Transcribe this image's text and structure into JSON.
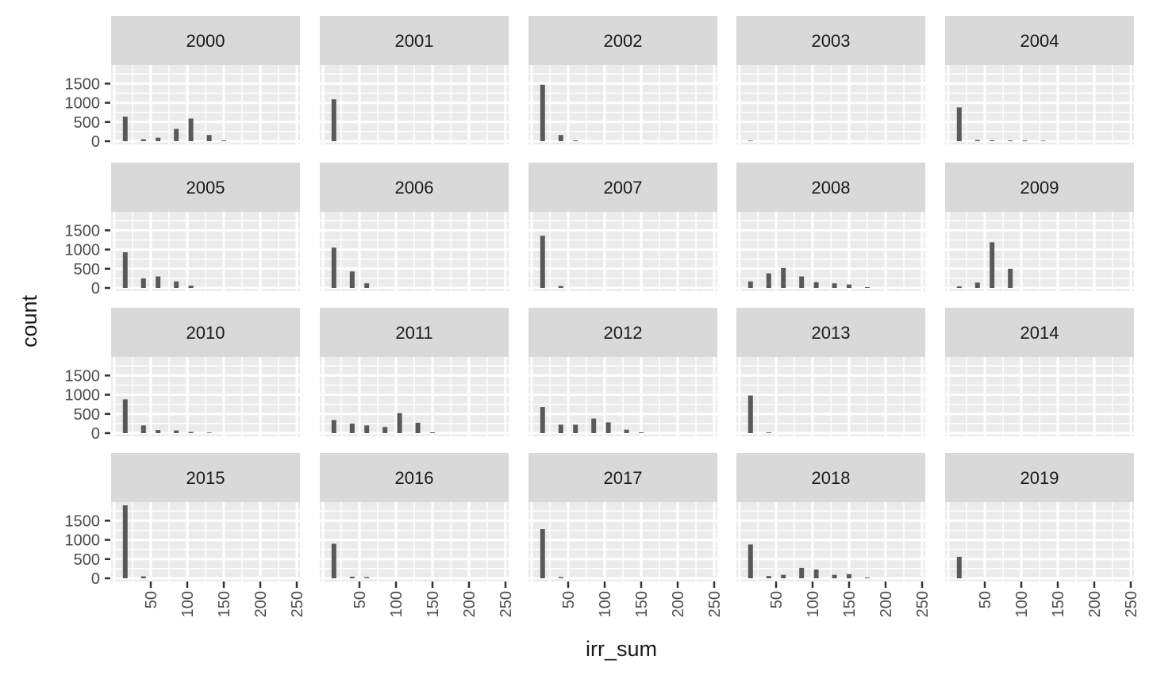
{
  "chart_data": {
    "type": "bar",
    "kind": "faceted-histogram",
    "xlabel": "irr_sum",
    "ylabel": "count",
    "xlim": [
      0,
      250
    ],
    "ylim": [
      0,
      1700
    ],
    "x_ticks": [
      50,
      100,
      150,
      200,
      250
    ],
    "y_ticks": [
      0,
      500,
      1000,
      1500
    ],
    "grid": true,
    "colors": {
      "panel": "#EBEBEB",
      "strip": "#D9D9D9",
      "bar": "#595959",
      "grid": "#FFFFFF",
      "text": "#4D4D4D",
      "title": "#1A1A1A"
    },
    "facet_layout": {
      "rows": 4,
      "cols": 5
    },
    "panels": [
      {
        "label": "2000",
        "bars": [
          {
            "x": 15,
            "y": 640
          },
          {
            "x": 40,
            "y": 50
          },
          {
            "x": 60,
            "y": 90
          },
          {
            "x": 85,
            "y": 320
          },
          {
            "x": 105,
            "y": 590
          },
          {
            "x": 130,
            "y": 160
          },
          {
            "x": 150,
            "y": 20
          }
        ]
      },
      {
        "label": "2001",
        "bars": [
          {
            "x": 15,
            "y": 1090
          }
        ]
      },
      {
        "label": "2002",
        "bars": [
          {
            "x": 15,
            "y": 1470
          },
          {
            "x": 40,
            "y": 160
          },
          {
            "x": 60,
            "y": 20
          }
        ]
      },
      {
        "label": "2003",
        "bars": [
          {
            "x": 15,
            "y": 15
          }
        ]
      },
      {
        "label": "2004",
        "bars": [
          {
            "x": 15,
            "y": 880
          },
          {
            "x": 40,
            "y": 30
          },
          {
            "x": 60,
            "y": 25
          },
          {
            "x": 85,
            "y": 20
          },
          {
            "x": 105,
            "y": 20
          },
          {
            "x": 130,
            "y": 15
          }
        ]
      },
      {
        "label": "2005",
        "bars": [
          {
            "x": 15,
            "y": 930
          },
          {
            "x": 40,
            "y": 250
          },
          {
            "x": 60,
            "y": 300
          },
          {
            "x": 85,
            "y": 170
          },
          {
            "x": 105,
            "y": 60
          }
        ]
      },
      {
        "label": "2006",
        "bars": [
          {
            "x": 15,
            "y": 1050
          },
          {
            "x": 40,
            "y": 430
          },
          {
            "x": 60,
            "y": 120
          }
        ]
      },
      {
        "label": "2007",
        "bars": [
          {
            "x": 15,
            "y": 1360
          },
          {
            "x": 40,
            "y": 50
          }
        ]
      },
      {
        "label": "2008",
        "bars": [
          {
            "x": 15,
            "y": 170
          },
          {
            "x": 40,
            "y": 380
          },
          {
            "x": 60,
            "y": 520
          },
          {
            "x": 85,
            "y": 300
          },
          {
            "x": 105,
            "y": 150
          },
          {
            "x": 130,
            "y": 120
          },
          {
            "x": 150,
            "y": 90
          },
          {
            "x": 175,
            "y": 20
          }
        ]
      },
      {
        "label": "2009",
        "bars": [
          {
            "x": 15,
            "y": 40
          },
          {
            "x": 40,
            "y": 140
          },
          {
            "x": 60,
            "y": 1190
          },
          {
            "x": 85,
            "y": 500
          }
        ]
      },
      {
        "label": "2010",
        "bars": [
          {
            "x": 15,
            "y": 880
          },
          {
            "x": 40,
            "y": 200
          },
          {
            "x": 60,
            "y": 80
          },
          {
            "x": 85,
            "y": 70
          },
          {
            "x": 105,
            "y": 30
          },
          {
            "x": 130,
            "y": 15
          }
        ]
      },
      {
        "label": "2011",
        "bars": [
          {
            "x": 15,
            "y": 340
          },
          {
            "x": 40,
            "y": 250
          },
          {
            "x": 60,
            "y": 200
          },
          {
            "x": 85,
            "y": 160
          },
          {
            "x": 105,
            "y": 520
          },
          {
            "x": 130,
            "y": 270
          },
          {
            "x": 150,
            "y": 20
          }
        ]
      },
      {
        "label": "2012",
        "bars": [
          {
            "x": 15,
            "y": 680
          },
          {
            "x": 40,
            "y": 220
          },
          {
            "x": 60,
            "y": 220
          },
          {
            "x": 85,
            "y": 380
          },
          {
            "x": 105,
            "y": 280
          },
          {
            "x": 130,
            "y": 90
          },
          {
            "x": 150,
            "y": 20
          }
        ]
      },
      {
        "label": "2013",
        "bars": [
          {
            "x": 15,
            "y": 980
          },
          {
            "x": 40,
            "y": 20
          }
        ]
      },
      {
        "label": "2014",
        "bars": []
      },
      {
        "label": "2015",
        "bars": [
          {
            "x": 15,
            "y": 1900
          },
          {
            "x": 40,
            "y": 50
          }
        ]
      },
      {
        "label": "2016",
        "bars": [
          {
            "x": 15,
            "y": 900
          },
          {
            "x": 40,
            "y": 40
          },
          {
            "x": 60,
            "y": 30
          }
        ]
      },
      {
        "label": "2017",
        "bars": [
          {
            "x": 15,
            "y": 1280
          },
          {
            "x": 40,
            "y": 30
          }
        ]
      },
      {
        "label": "2018",
        "bars": [
          {
            "x": 15,
            "y": 880
          },
          {
            "x": 40,
            "y": 60
          },
          {
            "x": 60,
            "y": 90
          },
          {
            "x": 85,
            "y": 270
          },
          {
            "x": 105,
            "y": 230
          },
          {
            "x": 130,
            "y": 90
          },
          {
            "x": 150,
            "y": 110
          },
          {
            "x": 175,
            "y": 20
          }
        ]
      },
      {
        "label": "2019",
        "bars": [
          {
            "x": 15,
            "y": 560
          }
        ]
      }
    ]
  }
}
